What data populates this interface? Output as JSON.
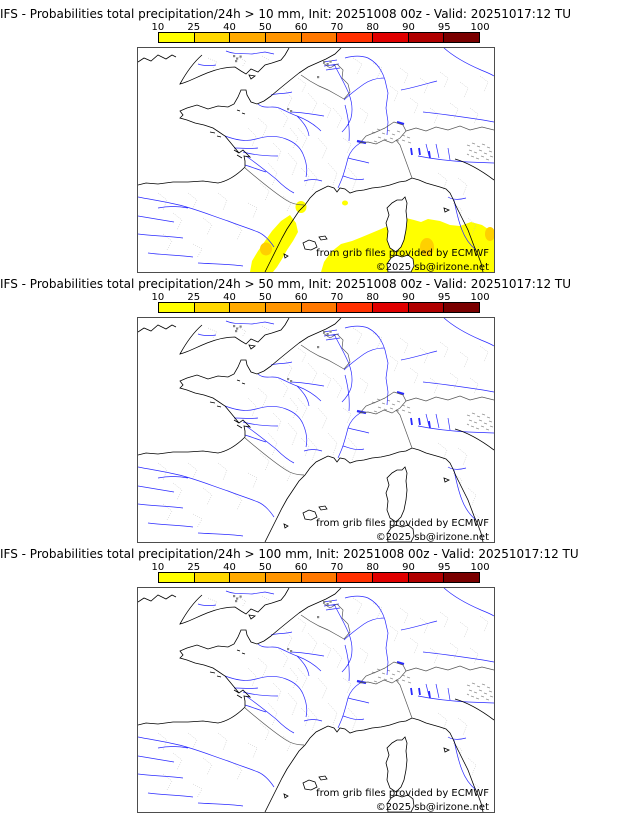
{
  "panels": [
    {
      "title": "IFS - Probabilities total precipitation/24h > 10 mm, Init: 20251008 00z - Valid: 20251017:12 TU",
      "threshold": "10 mm",
      "model": "IFS",
      "init": "20251008 00z",
      "valid": "20251017:12 TU",
      "precip_overlay_visible": true
    },
    {
      "title": "IFS - Probabilities total precipitation/24h > 50 mm, Init: 20251008 00z - Valid: 20251017:12 TU",
      "threshold": "50 mm",
      "model": "IFS",
      "init": "20251008 00z",
      "valid": "20251017:12 TU",
      "precip_overlay_visible": false
    },
    {
      "title": "IFS - Probabilities total precipitation/24h > 100 mm, Init: 20251008 00z - Valid: 20251017:12 TU",
      "threshold": "100 mm",
      "model": "IFS",
      "init": "20251008 00z",
      "valid": "20251017:12 TU",
      "precip_overlay_visible": false
    }
  ],
  "colorbar": {
    "tick_labels": [
      "10",
      "25",
      "40",
      "50",
      "60",
      "70",
      "80",
      "90",
      "95",
      "100"
    ],
    "colors": [
      "#FFFF00",
      "#FFD800",
      "#FFAA00",
      "#FF9500",
      "#FF7800",
      "#FF3000",
      "#E00000",
      "#B00000",
      "#7A0000"
    ]
  },
  "map": {
    "credit_line1": "from grib files provided by ECMWF",
    "credit_line2": "©2025 sb@irizone.net"
  },
  "colors": {
    "precip_low": "#FFFF00",
    "precip_spot": "#FFD000",
    "river": "#2a2aff",
    "coast": "#000000",
    "admin": "#bcbcbc",
    "border": "#555555"
  }
}
